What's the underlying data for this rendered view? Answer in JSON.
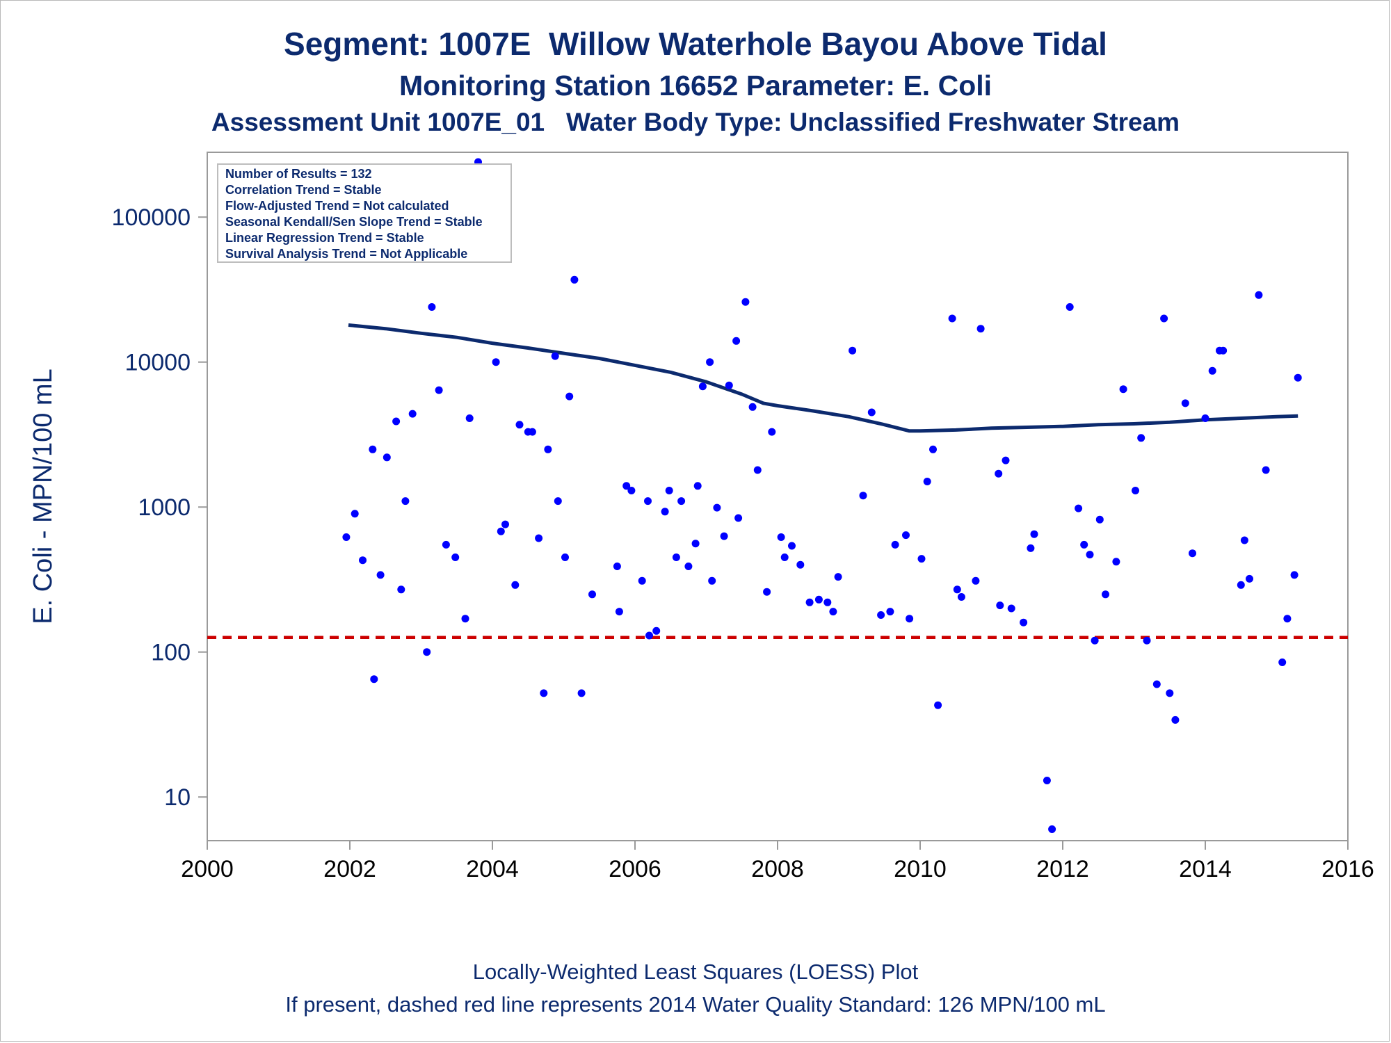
{
  "titles": {
    "line1": "Segment: 1007E  Willow Waterhole Bayou Above Tidal",
    "line2": "Monitoring Station 16652 Parameter: E. Coli",
    "line3": "Assessment Unit 1007E_01   Water Body Type: Unclassified Freshwater Stream"
  },
  "footer": {
    "line1": "Locally-Weighted Least Squares (LOESS) Plot",
    "line2": "If present, dashed red line represents 2014 Water Quality Standard: 126 MPN/100 mL"
  },
  "stats_box": [
    "Number of Results = 132",
    "Correlation Trend = Stable",
    "Flow-Adjusted Trend = Not calculated",
    "Seasonal Kendall/Sen Slope Trend = Stable",
    "Linear Regression Trend = Stable",
    "Survival Analysis Trend = Not Applicable"
  ],
  "colors": {
    "title": "#0c2a6e",
    "points": "#0000ff",
    "loess": "#0c2a6e",
    "standard_line": "#cc0000",
    "axis": "#9a9a9a"
  },
  "chart_data": {
    "type": "scatter",
    "xlabel": "",
    "ylabel": "E. Coli - MPN/100 mL",
    "x_scale": "linear",
    "y_scale": "log",
    "xlim": [
      2000,
      2016
    ],
    "ylim": [
      5,
      280000
    ],
    "x_ticks": [
      2000,
      2002,
      2004,
      2006,
      2008,
      2010,
      2012,
      2014,
      2016
    ],
    "y_ticks": [
      10,
      100,
      1000,
      10000,
      100000
    ],
    "x_tick_labels": [
      "2000",
      "2002",
      "2004",
      "2006",
      "2008",
      "2010",
      "2012",
      "2014",
      "2016"
    ],
    "y_tick_labels": [
      "10",
      "100",
      "1000",
      "10000",
      "100000"
    ],
    "grid": false,
    "standard_line": {
      "y": 126,
      "style": "dashed",
      "color": "#cc0000"
    },
    "loess": [
      [
        2001.98,
        18000
      ],
      [
        2002.5,
        17000
      ],
      [
        2003,
        15800
      ],
      [
        2003.5,
        14800
      ],
      [
        2004,
        13500
      ],
      [
        2004.5,
        12500
      ],
      [
        2005,
        11500
      ],
      [
        2005.5,
        10600
      ],
      [
        2006,
        9500
      ],
      [
        2006.5,
        8500
      ],
      [
        2007,
        7300
      ],
      [
        2007.5,
        6000
      ],
      [
        2007.8,
        5200
      ],
      [
        2008,
        5000
      ],
      [
        2008.5,
        4600
      ],
      [
        2009,
        4200
      ],
      [
        2009.5,
        3700
      ],
      [
        2009.85,
        3350
      ],
      [
        2010,
        3350
      ],
      [
        2010.5,
        3400
      ],
      [
        2011,
        3500
      ],
      [
        2011.5,
        3550
      ],
      [
        2012,
        3600
      ],
      [
        2012.5,
        3700
      ],
      [
        2013,
        3750
      ],
      [
        2013.5,
        3850
      ],
      [
        2014,
        4000
      ],
      [
        2014.5,
        4100
      ],
      [
        2015,
        4200
      ],
      [
        2015.3,
        4250
      ]
    ],
    "points": [
      [
        2001.95,
        620
      ],
      [
        2002.07,
        900
      ],
      [
        2002.18,
        430
      ],
      [
        2002.32,
        2500
      ],
      [
        2002.34,
        65
      ],
      [
        2002.43,
        340
      ],
      [
        2002.52,
        2200
      ],
      [
        2002.65,
        3900
      ],
      [
        2002.72,
        270
      ],
      [
        2002.78,
        1100
      ],
      [
        2002.88,
        4400
      ],
      [
        2002.98,
        82000
      ],
      [
        2003.08,
        100
      ],
      [
        2003.15,
        24000
      ],
      [
        2003.25,
        6400
      ],
      [
        2003.35,
        550
      ],
      [
        2003.48,
        450
      ],
      [
        2003.52,
        170000
      ],
      [
        2003.62,
        170
      ],
      [
        2003.68,
        4100
      ],
      [
        2003.8,
        240000
      ],
      [
        2004.05,
        10000
      ],
      [
        2004.12,
        680
      ],
      [
        2004.18,
        760
      ],
      [
        2004.32,
        290
      ],
      [
        2004.38,
        3700
      ],
      [
        2004.5,
        3300
      ],
      [
        2004.56,
        3300
      ],
      [
        2004.65,
        610
      ],
      [
        2004.72,
        52
      ],
      [
        2004.78,
        2500
      ],
      [
        2004.88,
        11000
      ],
      [
        2004.92,
        1100
      ],
      [
        2005.02,
        450
      ],
      [
        2005.08,
        5800
      ],
      [
        2005.15,
        37000
      ],
      [
        2005.25,
        52
      ],
      [
        2005.4,
        250
      ],
      [
        2005.75,
        390
      ],
      [
        2005.78,
        190
      ],
      [
        2005.88,
        1400
      ],
      [
        2005.95,
        1300
      ],
      [
        2006.1,
        310
      ],
      [
        2006.18,
        1100
      ],
      [
        2006.2,
        130
      ],
      [
        2006.3,
        140
      ],
      [
        2006.42,
        930
      ],
      [
        2006.48,
        1300
      ],
      [
        2006.58,
        450
      ],
      [
        2006.65,
        1100
      ],
      [
        2006.75,
        390
      ],
      [
        2006.85,
        560
      ],
      [
        2006.88,
        1400
      ],
      [
        2006.95,
        6800
      ],
      [
        2007.05,
        10000
      ],
      [
        2007.08,
        310
      ],
      [
        2007.15,
        990
      ],
      [
        2007.25,
        630
      ],
      [
        2007.32,
        6900
      ],
      [
        2007.42,
        14000
      ],
      [
        2007.45,
        840
      ],
      [
        2007.55,
        26000
      ],
      [
        2007.65,
        4900
      ],
      [
        2007.72,
        1800
      ],
      [
        2007.85,
        260
      ],
      [
        2007.92,
        3300
      ],
      [
        2008.05,
        620
      ],
      [
        2008.1,
        450
      ],
      [
        2008.2,
        540
      ],
      [
        2008.32,
        400
      ],
      [
        2008.45,
        220
      ],
      [
        2008.58,
        230
      ],
      [
        2008.7,
        220
      ],
      [
        2008.78,
        190
      ],
      [
        2008.85,
        330
      ],
      [
        2009.05,
        12000
      ],
      [
        2009.2,
        1200
      ],
      [
        2009.32,
        4500
      ],
      [
        2009.45,
        180
      ],
      [
        2009.58,
        190
      ],
      [
        2009.65,
        550
      ],
      [
        2009.8,
        640
      ],
      [
        2009.85,
        170
      ],
      [
        2010.02,
        440
      ],
      [
        2010.1,
        1500
      ],
      [
        2010.18,
        2500
      ],
      [
        2010.25,
        43
      ],
      [
        2010.45,
        20000
      ],
      [
        2010.52,
        270
      ],
      [
        2010.58,
        240
      ],
      [
        2010.78,
        310
      ],
      [
        2010.85,
        17000
      ],
      [
        2011.1,
        1700
      ],
      [
        2011.12,
        210
      ],
      [
        2011.2,
        2100
      ],
      [
        2011.28,
        200
      ],
      [
        2011.45,
        160
      ],
      [
        2011.55,
        520
      ],
      [
        2011.6,
        650
      ],
      [
        2011.78,
        13
      ],
      [
        2011.85,
        6
      ],
      [
        2012.1,
        24000
      ],
      [
        2012.22,
        980
      ],
      [
        2012.3,
        550
      ],
      [
        2012.38,
        470
      ],
      [
        2012.45,
        120
      ],
      [
        2012.52,
        820
      ],
      [
        2012.6,
        250
      ],
      [
        2012.75,
        420
      ],
      [
        2012.85,
        6500
      ],
      [
        2013.02,
        1300
      ],
      [
        2013.1,
        3000
      ],
      [
        2013.18,
        120
      ],
      [
        2013.32,
        60
      ],
      [
        2013.42,
        20000
      ],
      [
        2013.5,
        52
      ],
      [
        2013.58,
        34
      ],
      [
        2013.72,
        5200
      ],
      [
        2013.82,
        480
      ],
      [
        2014.0,
        4100
      ],
      [
        2014.1,
        8700
      ],
      [
        2014.2,
        12000
      ],
      [
        2014.25,
        12000
      ],
      [
        2014.5,
        290
      ],
      [
        2014.55,
        590
      ],
      [
        2014.62,
        320
      ],
      [
        2014.75,
        29000
      ],
      [
        2014.85,
        1800
      ],
      [
        2015.08,
        85
      ],
      [
        2015.15,
        170
      ],
      [
        2015.25,
        340
      ],
      [
        2015.3,
        7800
      ]
    ]
  }
}
